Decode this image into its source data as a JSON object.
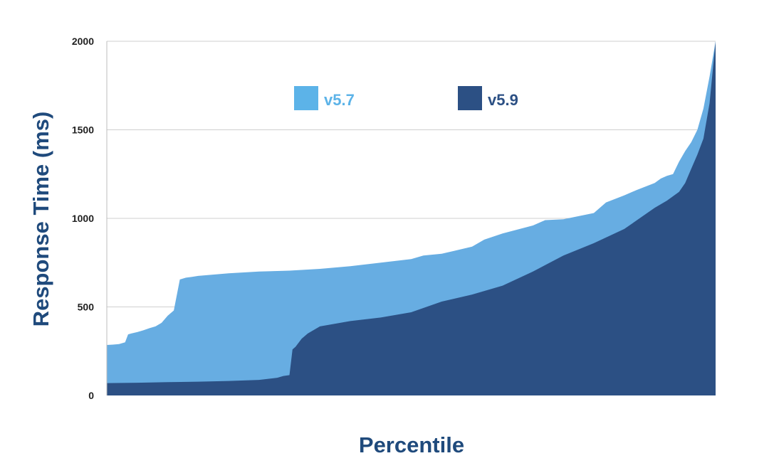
{
  "chart_data": {
    "type": "area",
    "title": "",
    "xlabel": "Percentile",
    "ylabel": "Response Time (ms)",
    "xlim": [
      0,
      100
    ],
    "ylim": [
      0,
      2000
    ],
    "yticks": [
      0,
      500,
      1000,
      1500,
      2000
    ],
    "ytick_labels": [
      "0",
      "500",
      "1000",
      "1500",
      "2000"
    ],
    "grid": true,
    "legend_position": "top-center",
    "series": [
      {
        "name": "v5.7",
        "color": "#67ade2",
        "legend_color": "#5cb3e8",
        "x": [
          0,
          1,
          2,
          3,
          3.5,
          4,
          5,
          6,
          7,
          8,
          9,
          10,
          11,
          12,
          13,
          14,
          15,
          20,
          25,
          30,
          35,
          40,
          45,
          50,
          52,
          55,
          60,
          62,
          65,
          70,
          72,
          75,
          80,
          82,
          85,
          87,
          90,
          91,
          92,
          93,
          94,
          95,
          96,
          97,
          98,
          99,
          100
        ],
        "y": [
          285,
          287,
          290,
          300,
          345,
          350,
          358,
          368,
          380,
          390,
          410,
          450,
          480,
          655,
          665,
          670,
          675,
          690,
          700,
          705,
          715,
          730,
          750,
          770,
          790,
          800,
          840,
          880,
          915,
          960,
          990,
          995,
          1030,
          1090,
          1130,
          1160,
          1200,
          1225,
          1240,
          1250,
          1320,
          1380,
          1430,
          1500,
          1620,
          1800,
          2000
        ]
      },
      {
        "name": "v5.9",
        "color": "#2c5084",
        "legend_color": "#2c5084",
        "x": [
          0,
          5,
          10,
          15,
          20,
          25,
          28,
          29,
          30,
          30.5,
          31,
          32,
          33,
          35,
          40,
          45,
          50,
          55,
          60,
          65,
          70,
          75,
          80,
          85,
          90,
          92,
          94,
          95,
          96,
          97,
          98,
          99,
          100
        ],
        "y": [
          70,
          72,
          75,
          78,
          82,
          88,
          100,
          110,
          115,
          260,
          275,
          320,
          350,
          390,
          420,
          440,
          470,
          530,
          570,
          620,
          700,
          790,
          860,
          940,
          1060,
          1100,
          1150,
          1200,
          1280,
          1360,
          1450,
          1650,
          2000
        ]
      }
    ]
  }
}
